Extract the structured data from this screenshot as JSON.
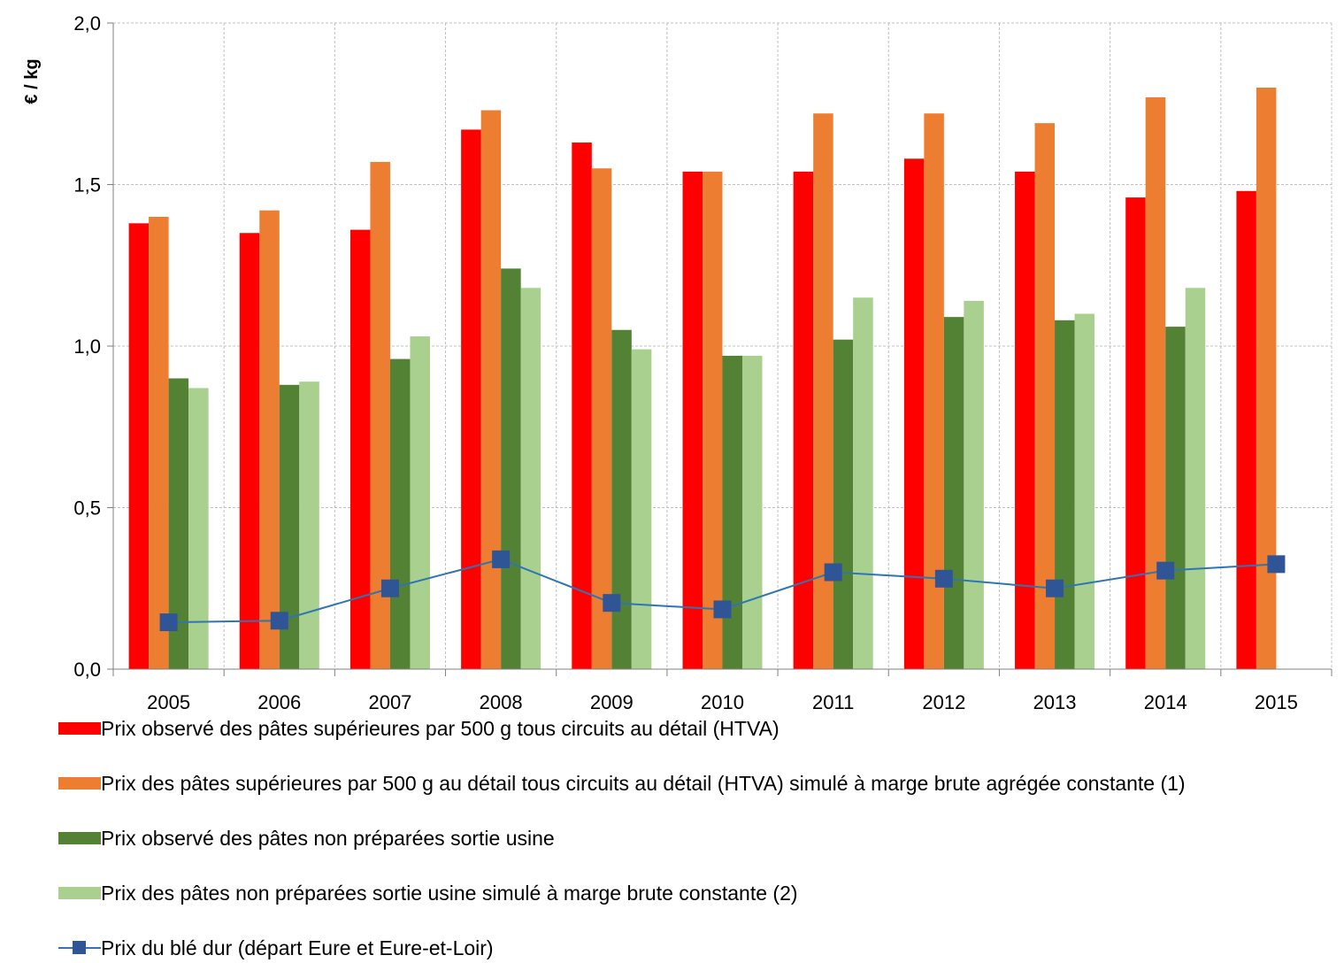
{
  "chart_data": {
    "type": "bar",
    "ylabel": "€ / kg",
    "ylim": [
      0,
      2.0
    ],
    "yticks": [
      "0,0",
      "0,5",
      "1,0",
      "1,5",
      "2,0"
    ],
    "ytick_values": [
      0,
      0.5,
      1.0,
      1.5,
      2.0
    ],
    "grid": true,
    "legend_placement": "bottom",
    "categories": [
      "2005",
      "2006",
      "2007",
      "2008",
      "2009",
      "2010",
      "2011",
      "2012",
      "2013",
      "2014",
      "2015"
    ],
    "series": [
      {
        "name": "Prix observé des pâtes supérieures par 500 g tous circuits au détail (HTVA)",
        "kind": "bar",
        "color": "#ff0000",
        "values": [
          1.38,
          1.35,
          1.36,
          1.67,
          1.63,
          1.54,
          1.54,
          1.58,
          1.54,
          1.46,
          1.48
        ]
      },
      {
        "name": "Prix des pâtes supérieures par 500 g au détail tous circuits au détail (HTVA) simulé à marge brute agrégée constante (1)",
        "kind": "bar",
        "color": "#ed7d31",
        "values": [
          1.4,
          1.42,
          1.57,
          1.73,
          1.55,
          1.54,
          1.72,
          1.72,
          1.69,
          1.77,
          1.8
        ]
      },
      {
        "name": "Prix observé des pâtes non préparées sortie usine",
        "kind": "bar",
        "color": "#548235",
        "values": [
          0.9,
          0.88,
          0.96,
          1.24,
          1.05,
          0.97,
          1.02,
          1.09,
          1.08,
          1.06,
          null
        ]
      },
      {
        "name": "Prix des pâtes non préparées sortie usine simulé à marge brute constante (2)",
        "kind": "bar",
        "color": "#a9d08e",
        "values": [
          0.87,
          0.89,
          1.03,
          1.18,
          0.99,
          0.97,
          1.15,
          1.14,
          1.1,
          1.18,
          null
        ]
      },
      {
        "name": "Prix du blé dur (départ Eure et Eure-et-Loir)",
        "kind": "line",
        "color": "#2e75b6",
        "marker_color": "#2f5597",
        "values": [
          0.145,
          0.15,
          0.25,
          0.34,
          0.205,
          0.185,
          0.3,
          0.28,
          0.25,
          0.305,
          0.325
        ]
      }
    ]
  }
}
